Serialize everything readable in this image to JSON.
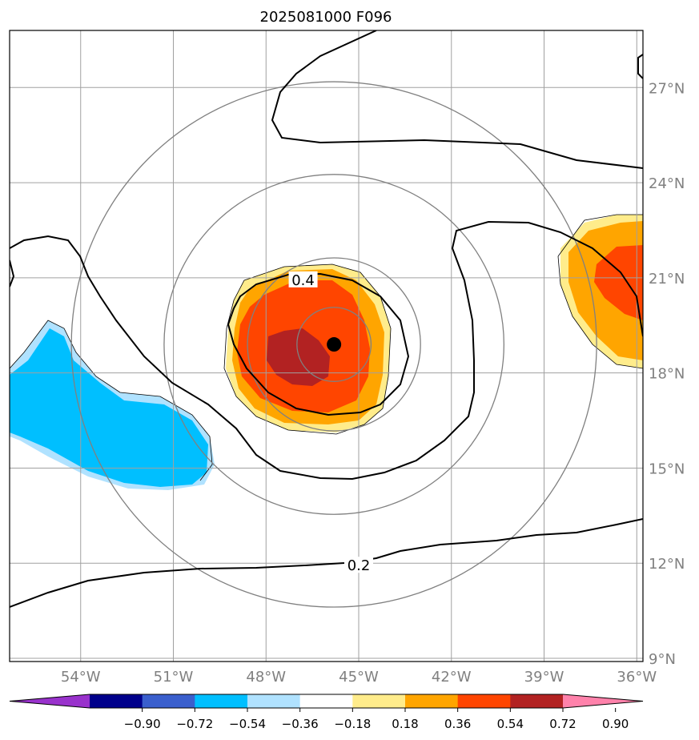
{
  "title": "2025081000 F096",
  "map": {
    "lon_range": [
      -56.3,
      -35.8
    ],
    "lat_range": [
      8.9,
      28.8
    ],
    "lon_ticks": [
      -54,
      -51,
      -48,
      -45,
      -42,
      -39,
      -36
    ],
    "lat_ticks": [
      9,
      12,
      15,
      18,
      21,
      24,
      27
    ],
    "lon_labels": [
      "54°W",
      "51°W",
      "48°W",
      "45°W",
      "42°W",
      "39°W",
      "36°W"
    ],
    "lat_labels": [
      "9°N",
      "12°N",
      "15°N",
      "18°N",
      "21°N",
      "24°N",
      "27°N"
    ],
    "center_marker": {
      "lon": -45.8,
      "lat": 18.9
    },
    "range_rings_deg": [
      1.2,
      2.8,
      5.5,
      8.5
    ],
    "contour_labels": [
      {
        "text": "0.4",
        "lon": -46.8,
        "lat": 20.9
      },
      {
        "text": "0.2",
        "lon": -45.0,
        "lat": 11.9
      }
    ],
    "fill_levels_shown": [
      "0.18-0.36",
      "0.36-0.54",
      "0.54-0.72",
      "0.72-0.90",
      "-0.54 to -0.36",
      "-0.36 to -0.18"
    ]
  },
  "colorbar": {
    "ticks": [
      "−0.90",
      "−0.72",
      "−0.54",
      "−0.36",
      "−0.18",
      "0.18",
      "0.36",
      "0.54",
      "0.72",
      "0.90"
    ],
    "colors": [
      "#9932cc",
      "#00008b",
      "#3a5fcd",
      "#00bfff",
      "#b0e2ff",
      "#ffffff",
      "#ffec8b",
      "#ffa500",
      "#ff4500",
      "#b22222",
      "#ff82ab"
    ]
  },
  "colors": {
    "pos1": "#ffec8b",
    "pos2": "#ffa500",
    "pos3": "#ff4500",
    "pos4": "#b22222",
    "neg1": "#b0e2ff",
    "neg2": "#00bfff",
    "grid": "#a0a0a0",
    "ring": "#808080"
  }
}
